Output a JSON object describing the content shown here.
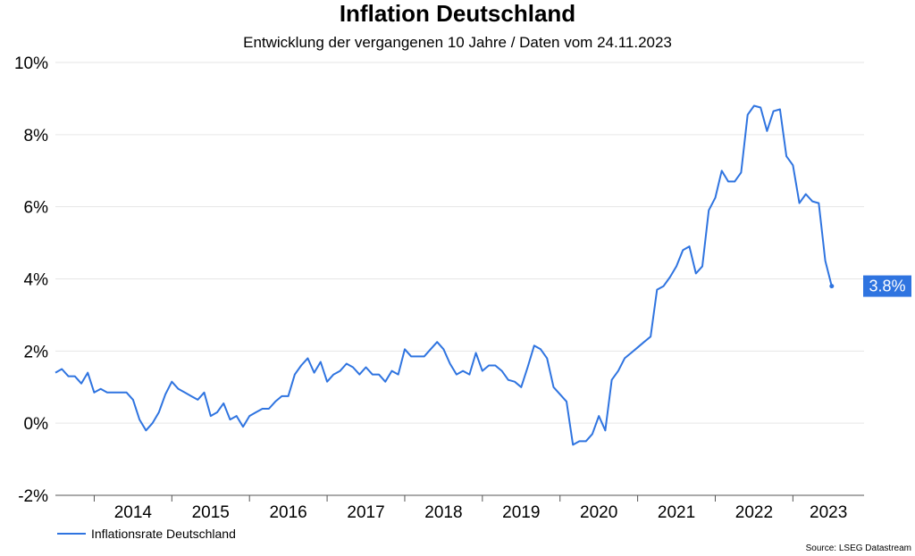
{
  "chart_data": {
    "type": "line",
    "title": "Inflation Deutschland",
    "subtitle": "Entwicklung der vergangenen 10 Jahre / Daten vom 24.11.2023",
    "ylim": [
      -2,
      10
    ],
    "yticks": [
      -2,
      0,
      2,
      4,
      6,
      8,
      10
    ],
    "ytick_labels": [
      "-2%",
      "0%",
      "2%",
      "4%",
      "6%",
      "8%",
      "10%"
    ],
    "xlim": [
      "2013-07",
      "2023-12"
    ],
    "year_labels": [
      "2014",
      "2015",
      "2016",
      "2017",
      "2018",
      "2019",
      "2020",
      "2021",
      "2022",
      "2023"
    ],
    "grid": true,
    "legend": "bottom-left",
    "colors": {
      "line": "#2f74e0",
      "grid": "#e6e6e6",
      "axis": "#555555",
      "label_bg": "#2f74e0"
    },
    "series": [
      {
        "name": "Inflationsrate Deutschland",
        "points": [
          [
            "2013-07",
            1.4
          ],
          [
            "2013-08",
            1.5
          ],
          [
            "2013-09",
            1.3
          ],
          [
            "2013-10",
            1.3
          ],
          [
            "2013-11",
            1.1
          ],
          [
            "2013-12",
            1.4
          ],
          [
            "2014-01",
            0.85
          ],
          [
            "2014-02",
            0.95
          ],
          [
            "2014-03",
            0.85
          ],
          [
            "2014-04",
            0.85
          ],
          [
            "2014-05",
            0.85
          ],
          [
            "2014-06",
            0.85
          ],
          [
            "2014-07",
            0.65
          ],
          [
            "2014-08",
            0.1
          ],
          [
            "2014-09",
            -0.2
          ],
          [
            "2014-10",
            0.0
          ],
          [
            "2014-11",
            0.3
          ],
          [
            "2014-12",
            0.8
          ],
          [
            "2015-01",
            1.15
          ],
          [
            "2015-02",
            0.95
          ],
          [
            "2015-03",
            0.85
          ],
          [
            "2015-04",
            0.75
          ],
          [
            "2015-05",
            0.65
          ],
          [
            "2015-06",
            0.85
          ],
          [
            "2015-07",
            0.2
          ],
          [
            "2015-08",
            0.3
          ],
          [
            "2015-09",
            0.55
          ],
          [
            "2015-10",
            0.1
          ],
          [
            "2015-11",
            0.2
          ],
          [
            "2015-12",
            -0.1
          ],
          [
            "2016-01",
            0.2
          ],
          [
            "2016-02",
            0.3
          ],
          [
            "2016-03",
            0.4
          ],
          [
            "2016-04",
            0.4
          ],
          [
            "2016-05",
            0.6
          ],
          [
            "2016-06",
            0.75
          ],
          [
            "2016-07",
            0.75
          ],
          [
            "2016-08",
            1.35
          ],
          [
            "2016-09",
            1.6
          ],
          [
            "2016-10",
            1.8
          ],
          [
            "2016-11",
            1.4
          ],
          [
            "2016-12",
            1.7
          ],
          [
            "2017-01",
            1.15
          ],
          [
            "2017-02",
            1.35
          ],
          [
            "2017-03",
            1.45
          ],
          [
            "2017-04",
            1.65
          ],
          [
            "2017-05",
            1.55
          ],
          [
            "2017-06",
            1.35
          ],
          [
            "2017-07",
            1.55
          ],
          [
            "2017-08",
            1.35
          ],
          [
            "2017-09",
            1.35
          ],
          [
            "2017-10",
            1.15
          ],
          [
            "2017-11",
            1.45
          ],
          [
            "2017-12",
            1.35
          ],
          [
            "2018-01",
            2.05
          ],
          [
            "2018-02",
            1.85
          ],
          [
            "2018-03",
            1.85
          ],
          [
            "2018-04",
            1.85
          ],
          [
            "2018-05",
            2.05
          ],
          [
            "2018-06",
            2.25
          ],
          [
            "2018-07",
            2.05
          ],
          [
            "2018-08",
            1.65
          ],
          [
            "2018-09",
            1.35
          ],
          [
            "2018-10",
            1.45
          ],
          [
            "2018-11",
            1.35
          ],
          [
            "2018-12",
            1.95
          ],
          [
            "2019-01",
            1.45
          ],
          [
            "2019-02",
            1.6
          ],
          [
            "2019-03",
            1.6
          ],
          [
            "2019-04",
            1.45
          ],
          [
            "2019-05",
            1.2
          ],
          [
            "2019-06",
            1.15
          ],
          [
            "2019-07",
            1.0
          ],
          [
            "2019-08",
            1.55
          ],
          [
            "2019-09",
            2.15
          ],
          [
            "2019-10",
            2.05
          ],
          [
            "2019-11",
            1.8
          ],
          [
            "2019-12",
            1.0
          ],
          [
            "2020-01",
            0.8
          ],
          [
            "2020-02",
            0.6
          ],
          [
            "2020-03",
            -0.6
          ],
          [
            "2020-04",
            -0.5
          ],
          [
            "2020-05",
            -0.5
          ],
          [
            "2020-06",
            -0.3
          ],
          [
            "2020-07",
            0.2
          ],
          [
            "2020-08",
            -0.2
          ],
          [
            "2020-09",
            1.2
          ],
          [
            "2020-10",
            1.45
          ],
          [
            "2020-11",
            1.8
          ],
          [
            "2020-12",
            1.95
          ],
          [
            "2021-01",
            2.1
          ],
          [
            "2021-02",
            2.25
          ],
          [
            "2021-03",
            2.4
          ],
          [
            "2021-04",
            3.7
          ],
          [
            "2021-05",
            3.8
          ],
          [
            "2021-06",
            4.05
          ],
          [
            "2021-07",
            4.35
          ],
          [
            "2021-08",
            4.8
          ],
          [
            "2021-09",
            4.9
          ],
          [
            "2021-10",
            4.15
          ],
          [
            "2021-11",
            4.35
          ],
          [
            "2021-12",
            5.9
          ],
          [
            "2022-01",
            6.25
          ],
          [
            "2022-02",
            7.0
          ],
          [
            "2022-03",
            6.7
          ],
          [
            "2022-04",
            6.7
          ],
          [
            "2022-05",
            6.95
          ],
          [
            "2022-06",
            8.55
          ],
          [
            "2022-07",
            8.8
          ],
          [
            "2022-08",
            8.75
          ],
          [
            "2022-09",
            8.1
          ],
          [
            "2022-10",
            8.65
          ],
          [
            "2022-11",
            8.7
          ],
          [
            "2022-12",
            7.4
          ],
          [
            "2023-01",
            7.15
          ],
          [
            "2023-02",
            6.1
          ],
          [
            "2023-03",
            6.35
          ],
          [
            "2023-04",
            6.15
          ],
          [
            "2023-05",
            6.1
          ],
          [
            "2023-06",
            4.5
          ],
          [
            "2023-07",
            3.8
          ]
        ]
      }
    ],
    "last_value_label": "3.8%",
    "legend_entries": [
      "Inflationsrate Deutschland"
    ],
    "source": "Source: LSEG Datastream"
  }
}
